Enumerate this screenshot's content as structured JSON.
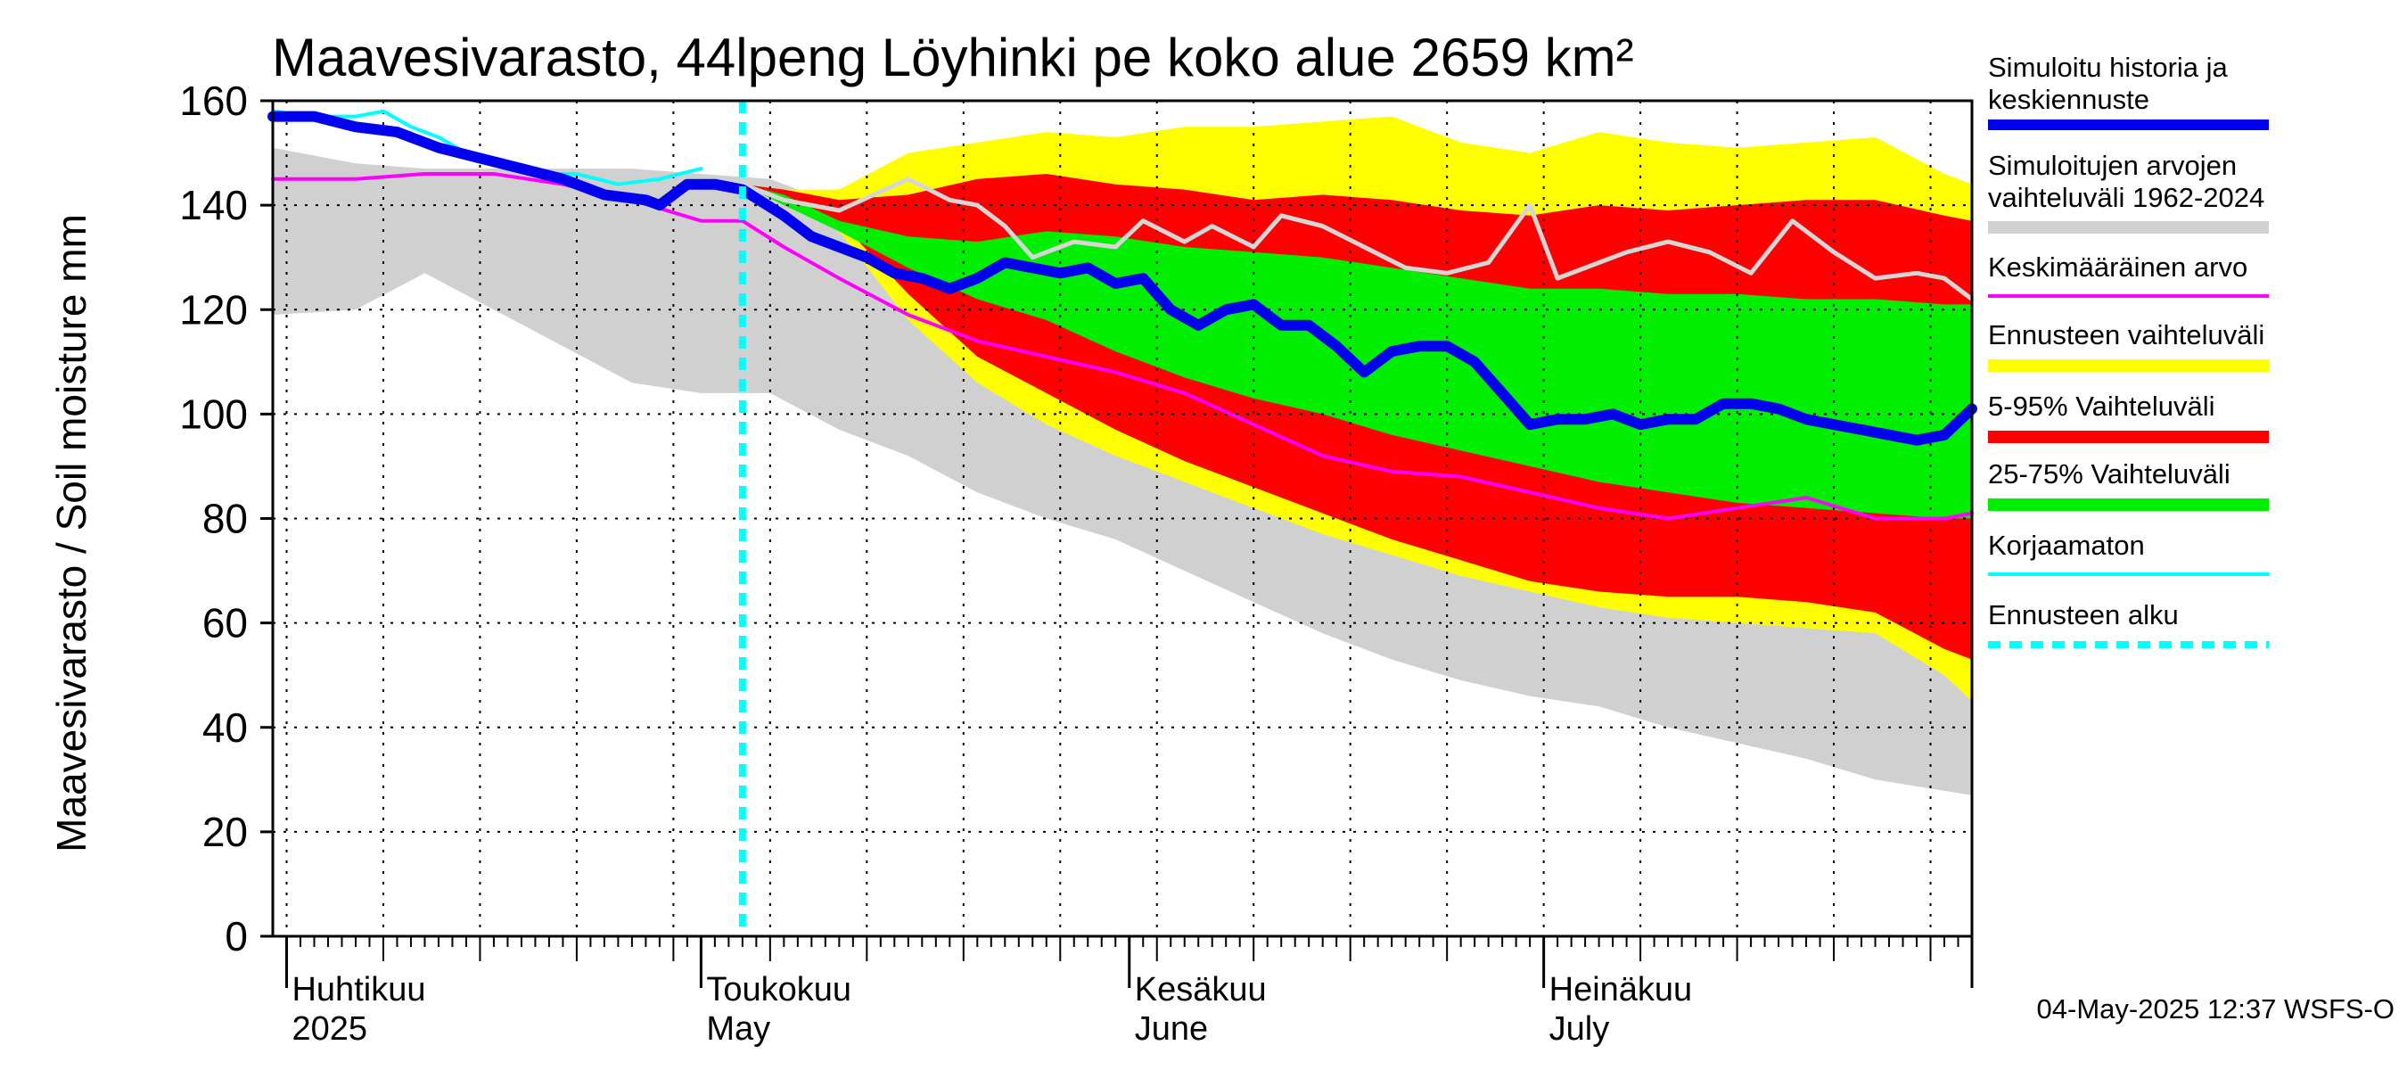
{
  "chart_data": {
    "type": "area",
    "title": "Maavesivarasto, 44lpeng Löyhinki pe koko alue 2659 km²",
    "ylabel": "Maavesivarasto / Soil moisture   mm",
    "ylim": [
      0,
      160
    ],
    "yticks": [
      0,
      20,
      40,
      60,
      80,
      100,
      120,
      140,
      160
    ],
    "xlim_day": [
      -1,
      122
    ],
    "x_unit": "days since 2025-04-01",
    "forecast_start_day": 33,
    "month_labels": [
      {
        "line1": "Huhtikuu",
        "line2": "2025",
        "day": 0
      },
      {
        "line1": "Toukokuu",
        "line2": "May",
        "day": 30
      },
      {
        "line1": "Kesäkuu",
        "line2": "June",
        "day": 61
      },
      {
        "line1": "Heinäkuu",
        "line2": "July",
        "day": 91
      }
    ],
    "month_boundaries": [
      0,
      30,
      61,
      91,
      122
    ],
    "timestamp": "04-May-2025 12:37 WSFS-O",
    "legend": [
      {
        "key": "sim",
        "label": [
          "Simuloitu historia ja",
          "keskiennuste"
        ],
        "color": "#0000ee",
        "style": "thick"
      },
      {
        "key": "hist_range",
        "label": [
          "Simuloitujen arvojen",
          "vaihteluväli 1962-2024"
        ],
        "color": "#d0d0d0",
        "style": "band"
      },
      {
        "key": "mean",
        "label": [
          "Keskimääräinen arvo"
        ],
        "color": "#ff00ff",
        "style": "line"
      },
      {
        "key": "fc_range",
        "label": [
          "Ennusteen vaihteluväli"
        ],
        "color": "#ffff00",
        "style": "band"
      },
      {
        "key": "p5_95",
        "label": [
          "5-95% Vaihteluväli"
        ],
        "color": "#ff0000",
        "style": "band"
      },
      {
        "key": "p25_75",
        "label": [
          "25-75% Vaihteluväli"
        ],
        "color": "#00ee00",
        "style": "band"
      },
      {
        "key": "raw",
        "label": [
          "Korjaamaton"
        ],
        "color": "#00ffff",
        "style": "line"
      },
      {
        "key": "fc_start",
        "label": [
          "Ennusteen alku"
        ],
        "color": "#00ffff",
        "style": "dashed"
      }
    ],
    "series": {
      "hist_range": {
        "x": [
          -1,
          5,
          10,
          15,
          20,
          25,
          30,
          35,
          40,
          45,
          50,
          55,
          60,
          65,
          70,
          75,
          80,
          85,
          90,
          95,
          100,
          105,
          110,
          115,
          122
        ],
        "upper": [
          151,
          148,
          147,
          147,
          147,
          147,
          146,
          145,
          140,
          140,
          140,
          139,
          138,
          137,
          137,
          136,
          136,
          135,
          135,
          134,
          133,
          131,
          130,
          129,
          128
        ],
        "lower": [
          119,
          120,
          127,
          120,
          113,
          106,
          104,
          104,
          97,
          92,
          85,
          80,
          76,
          70,
          64,
          58,
          53,
          49,
          46,
          44,
          40,
          37,
          34,
          30,
          27
        ]
      },
      "fc_range": {
        "x": [
          33,
          36,
          40,
          45,
          50,
          55,
          60,
          65,
          70,
          75,
          80,
          85,
          90,
          95,
          100,
          105,
          110,
          115,
          120,
          122
        ],
        "upper": [
          144,
          143,
          143,
          150,
          152,
          154,
          153,
          155,
          155,
          156,
          157,
          152,
          150,
          154,
          152,
          151,
          152,
          153,
          146,
          144
        ],
        "lower": [
          144,
          141,
          135,
          118,
          106,
          98,
          92,
          87,
          82,
          77,
          73,
          69,
          66,
          63,
          61,
          60,
          59,
          58,
          50,
          45
        ]
      },
      "p5_95": {
        "x": [
          33,
          36,
          40,
          45,
          50,
          55,
          60,
          65,
          70,
          75,
          80,
          85,
          90,
          95,
          100,
          105,
          110,
          115,
          120,
          122
        ],
        "upper": [
          144,
          143,
          141,
          142,
          145,
          146,
          144,
          143,
          141,
          142,
          141,
          139,
          138,
          140,
          139,
          140,
          141,
          141,
          138,
          137
        ],
        "lower": [
          144,
          141,
          137,
          123,
          111,
          104,
          97,
          91,
          86,
          81,
          76,
          72,
          68,
          66,
          65,
          65,
          64,
          62,
          55,
          53
        ]
      },
      "p25_75": {
        "x": [
          33,
          36,
          40,
          45,
          50,
          55,
          60,
          65,
          70,
          75,
          80,
          85,
          90,
          95,
          100,
          105,
          110,
          115,
          120,
          122
        ],
        "upper": [
          144,
          142,
          137,
          134,
          133,
          135,
          134,
          132,
          131,
          130,
          128,
          126,
          124,
          124,
          123,
          123,
          122,
          122,
          121,
          121
        ],
        "lower": [
          144,
          140,
          135,
          128,
          122,
          118,
          112,
          107,
          103,
          100,
          96,
          93,
          90,
          87,
          85,
          83,
          82,
          81,
          80,
          80
        ]
      },
      "median_grey": {
        "x": [
          33,
          36,
          40,
          45,
          48,
          50,
          52,
          54,
          57,
          60,
          62,
          65,
          67,
          70,
          72,
          75,
          78,
          81,
          84,
          87,
          90,
          92,
          95,
          97,
          100,
          103,
          106,
          109,
          112,
          115,
          118,
          120,
          122
        ],
        "values": [
          144,
          141,
          139,
          145,
          141,
          140,
          136,
          130,
          133,
          132,
          137,
          133,
          136,
          132,
          138,
          136,
          132,
          128,
          127,
          129,
          140,
          126,
          129,
          131,
          133,
          131,
          127,
          137,
          131,
          126,
          127,
          126,
          122
        ]
      },
      "mean": {
        "x": [
          -1,
          5,
          10,
          15,
          20,
          25,
          30,
          33,
          36,
          40,
          45,
          50,
          55,
          60,
          65,
          70,
          75,
          80,
          85,
          90,
          95,
          100,
          105,
          110,
          115,
          120,
          122
        ],
        "values": [
          145,
          145,
          146,
          146,
          144,
          141,
          137,
          137,
          132,
          126,
          119,
          114,
          111,
          108,
          104,
          98,
          92,
          89,
          88,
          85,
          82,
          80,
          82,
          84,
          80,
          80,
          81
        ]
      },
      "raw": {
        "x": [
          -1,
          2,
          5,
          7,
          9,
          11,
          13,
          15,
          18,
          21,
          24,
          27,
          30
        ],
        "values": [
          158,
          157,
          157,
          158,
          155,
          153,
          150,
          148,
          146,
          146,
          144,
          145,
          147
        ]
      },
      "sim": {
        "x": [
          -1,
          2,
          5,
          8,
          11,
          14,
          17,
          20,
          23,
          26,
          27,
          29,
          31,
          33,
          36,
          38,
          40,
          42,
          44,
          46,
          48,
          50,
          52,
          54,
          56,
          58,
          60,
          62,
          64,
          66,
          68,
          70,
          72,
          74,
          76,
          78,
          80,
          82,
          84,
          86,
          88,
          90,
          92,
          94,
          96,
          98,
          100,
          102,
          104,
          106,
          108,
          110,
          112,
          114,
          116,
          118,
          120,
          122
        ],
        "values": [
          157,
          157,
          155,
          154,
          151,
          149,
          147,
          145,
          142,
          141,
          140,
          144,
          144,
          143,
          138,
          134,
          132,
          130,
          127,
          126,
          124,
          126,
          129,
          128,
          127,
          128,
          125,
          126,
          120,
          117,
          120,
          121,
          117,
          117,
          113,
          108,
          112,
          113,
          113,
          110,
          104,
          98,
          99,
          99,
          100,
          98,
          99,
          99,
          102,
          102,
          101,
          99,
          98,
          97,
          96,
          95,
          96,
          101
        ]
      }
    }
  }
}
